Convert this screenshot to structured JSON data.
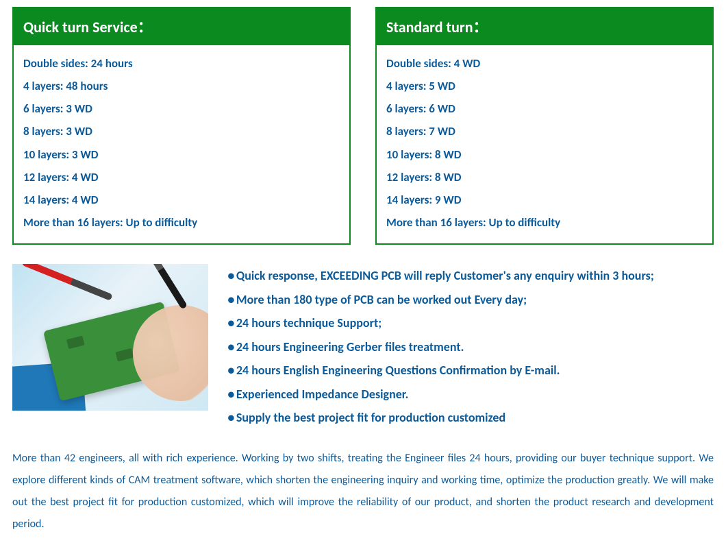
{
  "colors": {
    "green": "#0a8a1f",
    "text_blue": "#0b5a99",
    "white": "#ffffff"
  },
  "cards": [
    {
      "title": "Quick turn Service：",
      "items": [
        "Double sides: 24 hours",
        "4 layers: 48 hours",
        "6 layers: 3 WD",
        "8 layers: 3 WD",
        "10 layers: 3 WD",
        "12 layers: 4 WD",
        "14 layers: 4 WD",
        "More than 16 layers: Up to difficulty"
      ]
    },
    {
      "title": "Standard turn：",
      "items": [
        "Double sides: 4 WD",
        "4 layers: 5 WD",
        "6 layers: 6 WD",
        "8 layers: 7 WD",
        "10 layers: 8 WD",
        "12 layers: 8 WD",
        "14 layers: 9 WD",
        "More than 16 layers: Up to difficulty"
      ]
    }
  ],
  "features": [
    "Quick response, EXCEEDING PCB will reply Customer's any enquiry within 3 hours;",
    "More than 180 type of PCB can be worked out Every day;",
    "24 hours technique Support;",
    "24 hours Engineering Gerber files treatment.",
    "24 hours English Engineering Questions Confirmation by E-mail.",
    "Experienced Impedance Designer.",
    "Supply the best project fit for production customized"
  ],
  "bullet_char": "●",
  "paragraph": "More than 42 engineers, all with rich experience. Working by two shifts, treating the Engineer files 24 hours, providing our buyer technique support. We explore different kinds of CAM treatment software, which shorten the engineering inquiry and working time, optimize the production greatly. We will make out the best project fit for production customized, which will improve the reliability of our product, and shorten the product research and development period."
}
